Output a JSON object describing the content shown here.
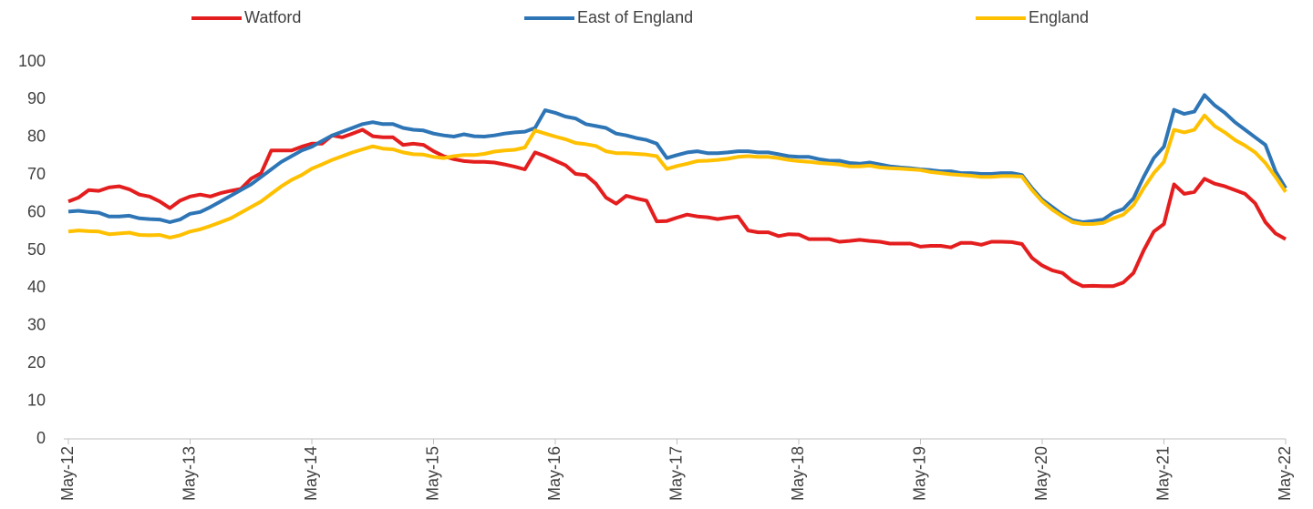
{
  "chart_data": {
    "type": "line",
    "categories": [
      "May-12",
      null,
      null,
      null,
      null,
      null,
      null,
      null,
      null,
      null,
      null,
      null,
      "May-13",
      null,
      null,
      null,
      null,
      null,
      null,
      null,
      null,
      null,
      null,
      null,
      "May-14",
      null,
      null,
      null,
      null,
      null,
      null,
      null,
      null,
      null,
      null,
      null,
      "May-15",
      null,
      null,
      null,
      null,
      null,
      null,
      null,
      null,
      null,
      null,
      null,
      "May-16",
      null,
      null,
      null,
      null,
      null,
      null,
      null,
      null,
      null,
      null,
      null,
      "May-17",
      null,
      null,
      null,
      null,
      null,
      null,
      null,
      null,
      null,
      null,
      null,
      "May-18",
      null,
      null,
      null,
      null,
      null,
      null,
      null,
      null,
      null,
      null,
      null,
      "May-19",
      null,
      null,
      null,
      null,
      null,
      null,
      null,
      null,
      null,
      null,
      null,
      "May-20",
      null,
      null,
      null,
      null,
      null,
      null,
      null,
      null,
      null,
      null,
      null,
      "May-21",
      null,
      null,
      null,
      null,
      null,
      null,
      null,
      null,
      null,
      null,
      null,
      "May-22"
    ],
    "series": [
      {
        "name": "Watford",
        "color": "#e41e1e",
        "values": [
          63,
          64,
          66,
          65.8,
          66.7,
          67,
          66.2,
          64.8,
          64.3,
          63,
          61.2,
          63.2,
          64.3,
          64.8,
          64.3,
          65.2,
          65.8,
          66.3,
          69,
          70.5,
          76.5,
          76.5,
          76.5,
          77.5,
          78.3,
          78.3,
          80.5,
          80,
          81,
          82,
          80.3,
          80,
          80,
          78,
          78.3,
          78,
          76.3,
          75,
          74.2,
          73.7,
          73.5,
          73.5,
          73.3,
          72.8,
          72.2,
          71.5,
          76,
          75,
          73.8,
          72.6,
          70.3,
          70,
          67.7,
          64,
          62.4,
          64.5,
          63.8,
          63.2,
          57.7,
          57.8,
          58.7,
          59.5,
          59,
          58.8,
          58.3,
          58.7,
          59,
          55.3,
          54.8,
          54.8,
          53.8,
          54.3,
          54.2,
          53,
          53,
          53,
          52.3,
          52.5,
          52.8,
          52.5,
          52.3,
          51.8,
          51.8,
          51.8,
          51,
          51.2,
          51.2,
          50.8,
          52,
          52,
          51.5,
          52.3,
          52.3,
          52.2,
          51.7,
          48,
          46,
          44.7,
          44,
          41.8,
          40.5,
          40.6,
          40.5,
          40.5,
          41.5,
          44,
          50,
          55,
          57,
          67.5,
          65,
          65.5,
          69,
          67.7,
          67,
          66,
          65,
          62.5,
          57.5,
          54.5,
          53
        ]
      },
      {
        "name": "East of England",
        "color": "#2e75b6",
        "values": [
          60.3,
          60.5,
          60.2,
          60,
          59,
          59,
          59.2,
          58.5,
          58.3,
          58.2,
          57.5,
          58.2,
          59.7,
          60.2,
          61.5,
          63,
          64.5,
          66,
          67.5,
          69.5,
          71.5,
          73.5,
          75,
          76.5,
          77.5,
          79,
          80.5,
          81.5,
          82.5,
          83.5,
          84,
          83.5,
          83.5,
          82.5,
          82,
          81.8,
          81,
          80.5,
          80.2,
          80.8,
          80.3,
          80.2,
          80.5,
          81,
          81.3,
          81.5,
          82.5,
          87.2,
          86.5,
          85.5,
          85,
          83.5,
          83,
          82.5,
          81,
          80.5,
          79.8,
          79.3,
          78.3,
          74.5,
          75.3,
          76,
          76.3,
          75.8,
          75.8,
          76,
          76.3,
          76.3,
          76,
          76,
          75.5,
          75,
          74.8,
          74.8,
          74.2,
          73.8,
          73.8,
          73.2,
          73,
          73.3,
          72.8,
          72.3,
          72,
          71.8,
          71.5,
          71.3,
          71,
          71,
          70.5,
          70.5,
          70.3,
          70.3,
          70.5,
          70.5,
          70,
          66.5,
          63.5,
          61.5,
          59.5,
          58,
          57.5,
          57.8,
          58.2,
          60,
          61,
          63.8,
          69.5,
          74.5,
          77.5,
          87.3,
          86.2,
          86.8,
          91.2,
          88.5,
          86.5,
          84,
          82,
          80,
          78,
          71,
          66.5
        ]
      },
      {
        "name": "England",
        "color": "#ffc000",
        "values": [
          55,
          55.3,
          55.1,
          55,
          54.3,
          54.5,
          54.7,
          54.1,
          54,
          54.1,
          53.4,
          54,
          55,
          55.6,
          56.5,
          57.5,
          58.5,
          60,
          61.5,
          63,
          65,
          67,
          68.7,
          70,
          71.7,
          72.8,
          74,
          75,
          76,
          76.8,
          77.6,
          77,
          76.8,
          76,
          75.5,
          75.4,
          74.8,
          74.5,
          75,
          75.3,
          75.3,
          75.6,
          76.2,
          76.5,
          76.7,
          77.3,
          81.8,
          81,
          80.2,
          79.5,
          78.5,
          78.2,
          77.7,
          76.3,
          75.8,
          75.8,
          75.6,
          75.4,
          75,
          71.6,
          72.4,
          73,
          73.7,
          73.8,
          74,
          74.3,
          74.8,
          75,
          74.8,
          74.8,
          74.5,
          74,
          73.7,
          73.5,
          73.2,
          73,
          72.8,
          72.3,
          72.3,
          72.5,
          72,
          71.8,
          71.7,
          71.5,
          71.3,
          70.8,
          70.5,
          70.2,
          70,
          69.8,
          69.5,
          69.5,
          69.7,
          69.7,
          69.6,
          66,
          63,
          60.8,
          59,
          57.5,
          57,
          57,
          57.3,
          58.5,
          59.5,
          62,
          66.5,
          70.5,
          73.5,
          82,
          81.3,
          82,
          85.8,
          83,
          81.3,
          79.3,
          77.8,
          76,
          73.2,
          69.5,
          65.5
        ]
      }
    ],
    "ylim": [
      0,
      100
    ],
    "yticks": [
      0,
      10,
      20,
      30,
      40,
      50,
      60,
      70,
      80,
      90,
      100
    ],
    "grid": false
  }
}
